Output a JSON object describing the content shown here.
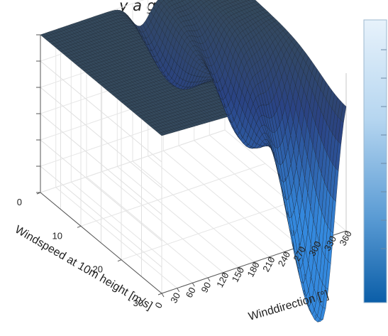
{
  "title_fragment": "y      a      g",
  "chart_data": {
    "type": "surface",
    "title": "",
    "xlabel": "Winddirection [°]",
    "ylabel": "Windspeed at 10m height [m/s]",
    "zlabel": "",
    "x_ticks": [
      0,
      30,
      60,
      90,
      120,
      150,
      180,
      210,
      240,
      270,
      300,
      330,
      360
    ],
    "y_ticks": [
      0,
      10,
      20,
      30
    ],
    "xlim": [
      0,
      360
    ],
    "ylim": [
      0,
      30
    ],
    "grid": true,
    "colorbar": true,
    "colormap": [
      "#08519c",
      "#3b82c4",
      "#9cc9eb",
      "#e7f2fb"
    ],
    "surface_color": "#34495c",
    "description_of_values": "relative height, 1.0 = flat plateau; dips centred near winddirection 240-330 at high windspeed",
    "surface_dips": [
      {
        "winddirection": 195,
        "windspeed": 8,
        "depth": 0.35
      },
      {
        "winddirection": 255,
        "windspeed": 18,
        "depth": 0.55
      },
      {
        "winddirection": 300,
        "windspeed": 28,
        "depth": 1.0
      },
      {
        "winddirection": 325,
        "windspeed": 30,
        "depth": 0.9
      }
    ]
  }
}
